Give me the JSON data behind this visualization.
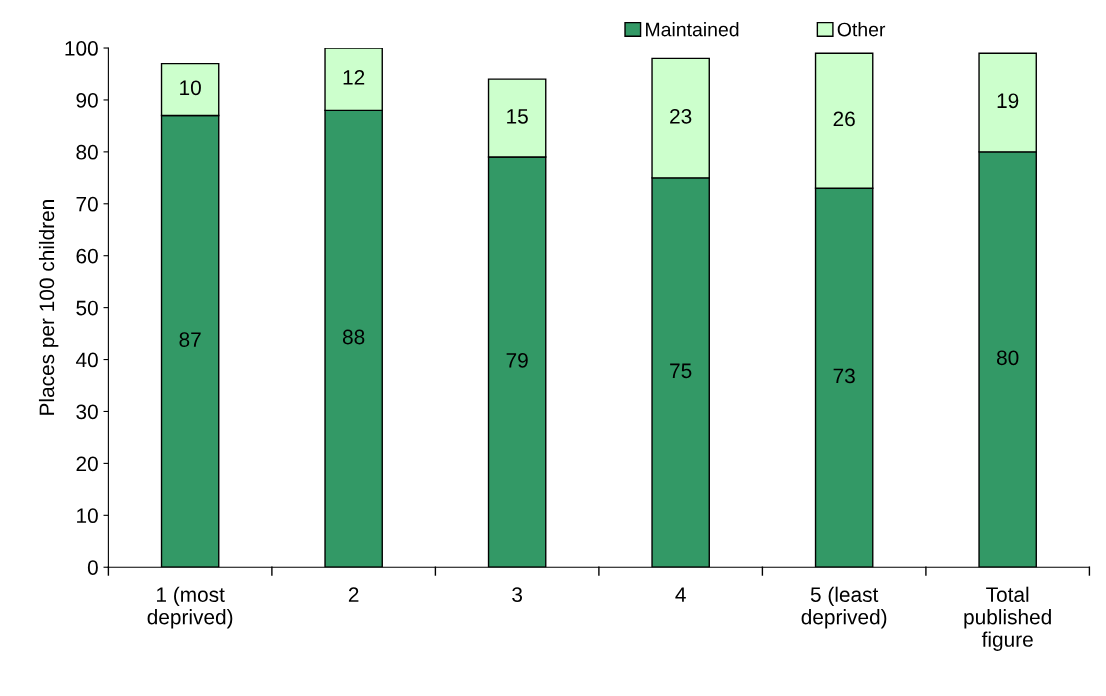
{
  "chart_data": {
    "type": "bar",
    "stacked": true,
    "ylabel": "Places per 100 children",
    "categories": [
      "1 (most\ndeprived)",
      "2",
      "3",
      "4",
      "5 (least\ndeprived)",
      "Total\npublished\nfigure"
    ],
    "series": [
      {
        "name": "Maintained",
        "color": "#339966",
        "values": [
          87,
          88,
          79,
          75,
          73,
          80
        ]
      },
      {
        "name": "Other",
        "color": "#ccffcc",
        "values": [
          10,
          12,
          15,
          23,
          26,
          19
        ]
      }
    ],
    "ylim": [
      0,
      100
    ],
    "yticks": [
      0,
      10,
      20,
      30,
      40,
      50,
      60,
      70,
      80,
      90,
      100
    ],
    "data_labels": true,
    "legend": "top right",
    "grid": false
  }
}
